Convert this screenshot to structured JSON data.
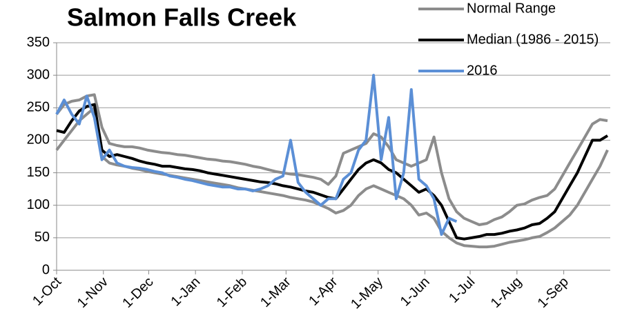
{
  "chart_data": {
    "type": "line",
    "title": "Salmon Falls Creek",
    "x": [
      0,
      5,
      10,
      15,
      20,
      25,
      30,
      35,
      40,
      45,
      50,
      55,
      60,
      65,
      70,
      75,
      80,
      85,
      90,
      95,
      100,
      105,
      110,
      115,
      120,
      125,
      130,
      135,
      140,
      145,
      150,
      155,
      160,
      165,
      170,
      175,
      180,
      185,
      190,
      195,
      200,
      205,
      210,
      215,
      220,
      225,
      230,
      235,
      240,
      245,
      250,
      255,
      260,
      265,
      270,
      275,
      280,
      285,
      290,
      295,
      300,
      305,
      310,
      315,
      320,
      325,
      330,
      335,
      340,
      345,
      350,
      355,
      360,
      365
    ],
    "xlim": [
      0,
      365
    ],
    "xticks": [
      {
        "value": 0,
        "label": "1-Oct"
      },
      {
        "value": 31,
        "label": "1-Nov"
      },
      {
        "value": 61,
        "label": "1-Dec"
      },
      {
        "value": 92,
        "label": "1-Jan"
      },
      {
        "value": 123,
        "label": "1-Feb"
      },
      {
        "value": 152,
        "label": "1-Mar"
      },
      {
        "value": 183,
        "label": "1-Apr"
      },
      {
        "value": 213,
        "label": "1-May"
      },
      {
        "value": 244,
        "label": "1-Jun"
      },
      {
        "value": 274,
        "label": "1-Jul"
      },
      {
        "value": 305,
        "label": "1-Aug"
      },
      {
        "value": 336,
        "label": "1-Sep"
      }
    ],
    "ylim": [
      0,
      350
    ],
    "yticks": [
      0,
      50,
      100,
      150,
      200,
      250,
      300,
      350
    ],
    "grid": true,
    "legend": "top-right",
    "series": [
      {
        "name": "Normal Range",
        "color": "#8c8c8c",
        "values": [
          240,
          255,
          260,
          262,
          268,
          270,
          220,
          195,
          192,
          190,
          190,
          188,
          185,
          183,
          181,
          180,
          178,
          177,
          175,
          173,
          171,
          170,
          168,
          167,
          165,
          163,
          160,
          158,
          155,
          152,
          150,
          148,
          147,
          145,
          143,
          140,
          132,
          145,
          180,
          185,
          190,
          195,
          210,
          205,
          190,
          170,
          165,
          160,
          165,
          170,
          205,
          150,
          110,
          90,
          80,
          75,
          70,
          72,
          78,
          82,
          90,
          100,
          102,
          108,
          112,
          115,
          125,
          145,
          165,
          185,
          205,
          225,
          232,
          230
        ]
      },
      {
        "color": "#8c8c8c",
        "values": [
          185,
          200,
          215,
          230,
          240,
          250,
          175,
          165,
          162,
          160,
          157,
          155,
          152,
          150,
          148,
          146,
          144,
          142,
          140,
          138,
          136,
          134,
          132,
          130,
          127,
          125,
          123,
          121,
          119,
          117,
          115,
          112,
          110,
          108,
          105,
          100,
          95,
          88,
          92,
          100,
          115,
          125,
          130,
          125,
          120,
          115,
          110,
          100,
          85,
          88,
          80,
          60,
          50,
          42,
          38,
          37,
          36,
          36,
          37,
          40,
          43,
          45,
          47,
          50,
          52,
          58,
          65,
          75,
          85,
          100,
          120,
          140,
          160,
          185
        ]
      },
      {
        "name": "Median (1986 - 2015)",
        "color": "#000000",
        "values": [
          215,
          212,
          230,
          245,
          252,
          255,
          185,
          175,
          178,
          175,
          172,
          168,
          165,
          163,
          160,
          160,
          158,
          156,
          155,
          153,
          150,
          148,
          146,
          144,
          142,
          140,
          138,
          136,
          135,
          133,
          130,
          128,
          125,
          122,
          120,
          116,
          112,
          110,
          125,
          140,
          155,
          165,
          170,
          165,
          155,
          150,
          140,
          130,
          120,
          125,
          115,
          100,
          75,
          50,
          48,
          50,
          52,
          55,
          55,
          57,
          60,
          62,
          65,
          70,
          72,
          80,
          90,
          110,
          130,
          150,
          175,
          200,
          200,
          207
        ]
      },
      {
        "name": "2016",
        "color": "#5b8fd6",
        "values": [
          240,
          262,
          240,
          225,
          268,
          235,
          170,
          185,
          165,
          160,
          158,
          157,
          155,
          152,
          150,
          145,
          143,
          140,
          138,
          135,
          132,
          130,
          128,
          128,
          125,
          125,
          122,
          125,
          130,
          140,
          145,
          200,
          135,
          120,
          110,
          100,
          110,
          110,
          140,
          150,
          185,
          200,
          300,
          170,
          235,
          110,
          150,
          278,
          140,
          130,
          110,
          55,
          80,
          75,
          null,
          null,
          null,
          null,
          null,
          null,
          null,
          null,
          null,
          null,
          null,
          null,
          null,
          null,
          null,
          null,
          null,
          null,
          null,
          null
        ]
      }
    ]
  }
}
